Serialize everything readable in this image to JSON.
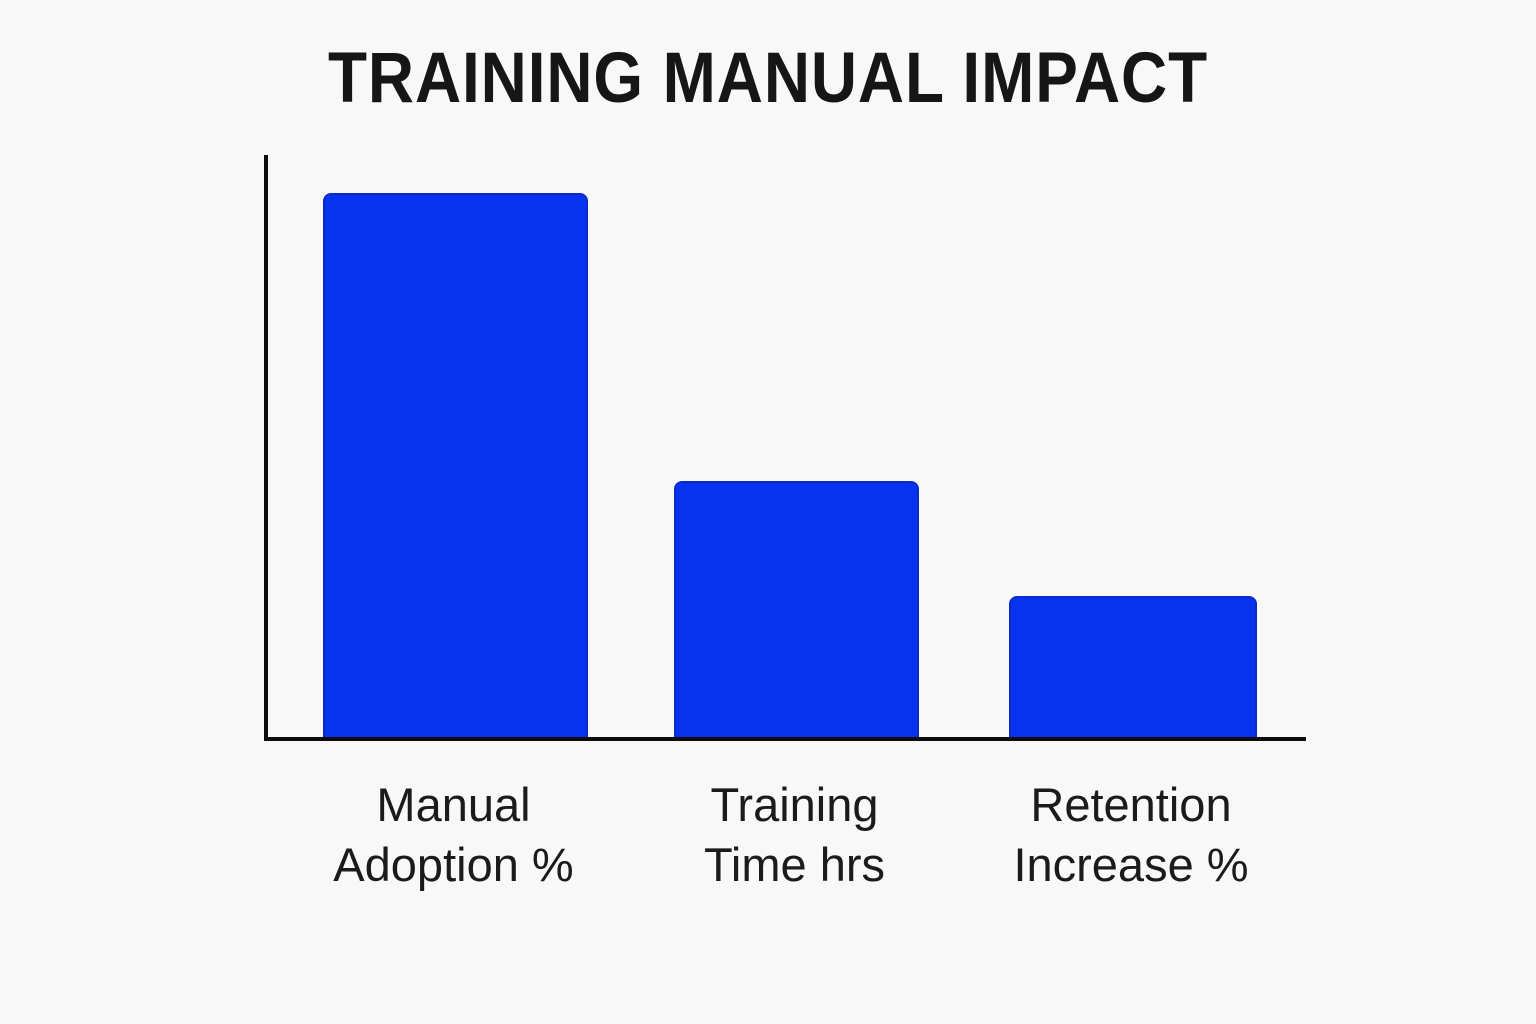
{
  "page": {
    "background": "#f8f8f9"
  },
  "chart_data": {
    "type": "bar",
    "title": "TRAINING MANUAL IMPACT",
    "categories": [
      "Manual\nAdoption %",
      "Training\nTime hrs",
      "Retention\nIncrease %"
    ],
    "values": [
      85,
      40,
      22
    ],
    "xlabel": "",
    "ylabel": "",
    "ylim": [
      0,
      91
    ],
    "grid": false,
    "legend": "none",
    "y_ticks_shown": false,
    "value_labels_shown": false,
    "bar_color": "#0833ee",
    "bar_edge_color": "#0a2bc8",
    "axis_color": "#0d0d0d",
    "title_color": "#161616",
    "label_color": "#1b1b1b"
  }
}
